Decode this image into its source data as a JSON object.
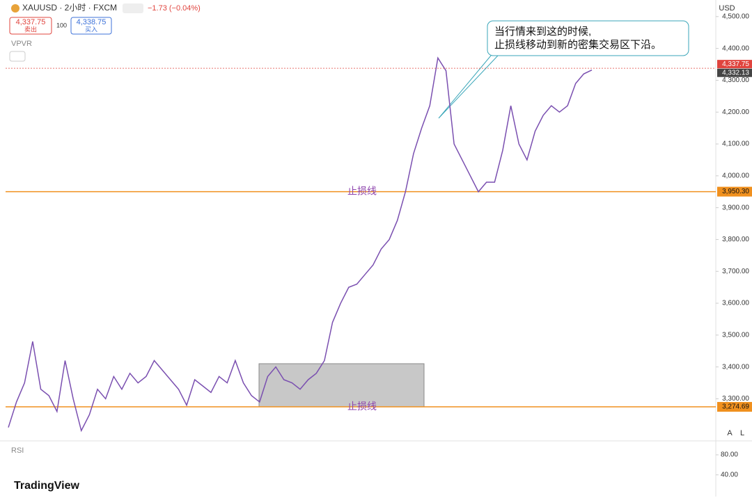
{
  "chart_data": {
    "type": "line",
    "header": {
      "symbol": "XAUUSD · 2小时 · FXCM",
      "change": "−1.73 (−0.04%)",
      "sell_price": "4,337.75",
      "sell_label": "卖出",
      "quantity": "100",
      "buy_price": "4,338.75",
      "buy_label": "买入",
      "indicator": "VPVR",
      "rsi": "RSI",
      "currency": "USD",
      "auto": "A",
      "log": "L",
      "brand": "TradingView"
    },
    "color": "#7a4fb0",
    "values": [
      3210,
      3290,
      3350,
      3480,
      3330,
      3310,
      3260,
      3420,
      3300,
      3200,
      3250,
      3330,
      3300,
      3370,
      3330,
      3380,
      3350,
      3370,
      3420,
      3390,
      3360,
      3330,
      3280,
      3360,
      3340,
      3320,
      3370,
      3350,
      3420,
      3350,
      3310,
      3290,
      3370,
      3400,
      3360,
      3350,
      3330,
      3360,
      3380,
      3420,
      3540,
      3600,
      3650,
      3660,
      3690,
      3720,
      3770,
      3800,
      3860,
      3950,
      4070,
      4150,
      4220,
      4370,
      4330,
      4100,
      4050,
      4000,
      3950,
      3980,
      3980,
      4080,
      4220,
      4100,
      4050,
      4140,
      4190,
      4220,
      4200,
      4220,
      4290,
      4320,
      4332.13
    ],
    "ylim": [
      3170,
      4552
    ],
    "yticks": [
      {
        "value": 3300,
        "label": "3,300.00"
      },
      {
        "value": 3400,
        "label": "3,400.00"
      },
      {
        "value": 3500,
        "label": "3,500.00"
      },
      {
        "value": 3600,
        "label": "3,600.00"
      },
      {
        "value": 3700,
        "label": "3,700.00"
      },
      {
        "value": 3800,
        "label": "3,800.00"
      },
      {
        "value": 3900,
        "label": "3,900.00"
      },
      {
        "value": 4000,
        "label": "4,000.00"
      },
      {
        "value": 4100,
        "label": "4,100.00"
      },
      {
        "value": 4200,
        "label": "4,200.00"
      },
      {
        "value": 4300,
        "label": "4,300.00"
      },
      {
        "value": 4400,
        "label": "4,400.00"
      },
      {
        "value": 4500,
        "label": "4,500.00"
      }
    ],
    "price_lines": [
      {
        "value": 3950.3,
        "label": "3,950.30",
        "name": "止损线",
        "color": "#f0901e"
      },
      {
        "value": 3274.69,
        "label": "3,274.69",
        "name": "止损线",
        "color": "#f0901e"
      }
    ],
    "markers": [
      {
        "value": 4337.75,
        "label": "4,337.75",
        "color": "#e0443e"
      },
      {
        "value": 4332.13,
        "label": "4,332.13",
        "color": "#444444"
      }
    ],
    "annotation": [
      "当行情来到这的时候,",
      "止损线移动到新的密集交易区下沿。"
    ],
    "rsi_ticks": [
      {
        "value": 80,
        "label": "80.00"
      },
      {
        "value": 40,
        "label": "40.00"
      }
    ]
  }
}
